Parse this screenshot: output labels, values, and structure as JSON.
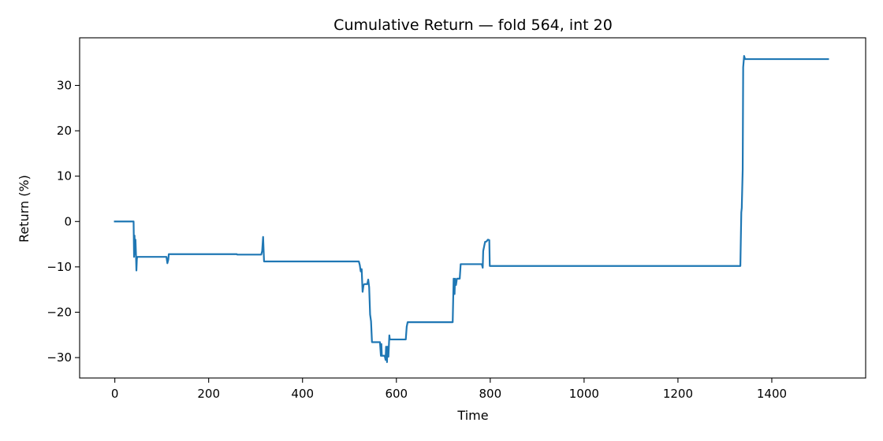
{
  "chart_data": {
    "type": "line",
    "title": "Cumulative Return — fold 564, int 20",
    "xlabel": "Time",
    "ylabel": "Return (%)",
    "xlim": [
      -75,
      1600
    ],
    "ylim": [
      -34.5,
      40.5
    ],
    "xticks": [
      0,
      200,
      400,
      600,
      800,
      1000,
      1200,
      1400
    ],
    "yticks": [
      -30,
      -20,
      -10,
      0,
      10,
      20,
      30
    ],
    "ytick_labels": [
      "−30",
      "−20",
      "−10",
      "0",
      "10",
      "20",
      "30"
    ],
    "grid": false,
    "legend": "none",
    "series": [
      {
        "color": "#1f77b4",
        "points": [
          [
            0,
            0
          ],
          [
            40,
            0
          ],
          [
            41,
            -7.8
          ],
          [
            42,
            -3.1
          ],
          [
            43,
            -7.2
          ],
          [
            44,
            -4.0
          ],
          [
            45,
            -7.0
          ],
          [
            46,
            -10.8
          ],
          [
            47,
            -8.2
          ],
          [
            48,
            -7.8
          ],
          [
            110,
            -7.8
          ],
          [
            112,
            -9.2
          ],
          [
            114,
            -8.4
          ],
          [
            115,
            -7.2
          ],
          [
            260,
            -7.2
          ],
          [
            261,
            -7.3
          ],
          [
            312,
            -7.3
          ],
          [
            314,
            -6.5
          ],
          [
            316,
            -3.4
          ],
          [
            318,
            -8.8
          ],
          [
            520,
            -8.8
          ],
          [
            522,
            -9.6
          ],
          [
            524,
            -11.0
          ],
          [
            526,
            -10.5
          ],
          [
            528,
            -15.5
          ],
          [
            530,
            -14.0
          ],
          [
            532,
            -13.8
          ],
          [
            538,
            -13.8
          ],
          [
            540,
            -12.8
          ],
          [
            542,
            -14.5
          ],
          [
            544,
            -20.5
          ],
          [
            546,
            -22.0
          ],
          [
            548,
            -26.6
          ],
          [
            565,
            -26.6
          ],
          [
            567,
            -29.6
          ],
          [
            568,
            -27.0
          ],
          [
            569,
            -29.6
          ],
          [
            575,
            -29.6
          ],
          [
            577,
            -30.5
          ],
          [
            578,
            -27.6
          ],
          [
            580,
            -31.0
          ],
          [
            581,
            -27.6
          ],
          [
            583,
            -29.8
          ],
          [
            585,
            -25.1
          ],
          [
            586,
            -26.0
          ],
          [
            620,
            -26.0
          ],
          [
            622,
            -23.2
          ],
          [
            624,
            -22.2
          ],
          [
            720,
            -22.2
          ],
          [
            722,
            -12.6
          ],
          [
            724,
            -16.0
          ],
          [
            725,
            -12.6
          ],
          [
            727,
            -14.0
          ],
          [
            729,
            -12.6
          ],
          [
            735,
            -12.6
          ],
          [
            737,
            -9.4
          ],
          [
            782,
            -9.4
          ],
          [
            784,
            -10.2
          ],
          [
            785,
            -6.5
          ],
          [
            787,
            -5.5
          ],
          [
            789,
            -4.5
          ],
          [
            792,
            -4.4
          ],
          [
            795,
            -4.0
          ],
          [
            798,
            -4.1
          ],
          [
            799,
            -9.8
          ],
          [
            1333,
            -9.8
          ],
          [
            1335,
            2.0
          ],
          [
            1336,
            3.0
          ],
          [
            1338,
            11.5
          ],
          [
            1339,
            34.0
          ],
          [
            1341,
            36.5
          ],
          [
            1343,
            35.8
          ],
          [
            1520,
            35.8
          ]
        ]
      }
    ]
  }
}
